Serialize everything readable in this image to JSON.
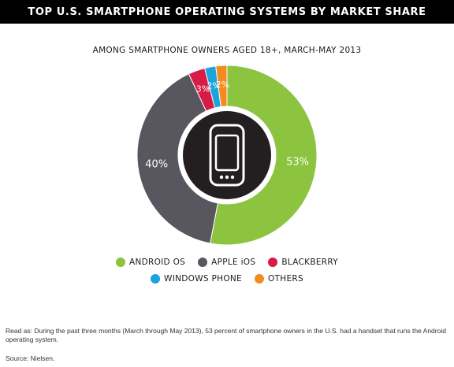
{
  "header": {
    "title": "TOP U.S. SMARTPHONE OPERATING SYSTEMS BY MARKET SHARE",
    "subtitle": "AMONG SMARTPHONE OWNERS AGED 18+, MARCH-MAY 2013"
  },
  "center_icon": "smartphone-icon",
  "chart_data": {
    "type": "pie",
    "title": "TOP U.S. SMARTPHONE OPERATING SYSTEMS BY MARKET SHARE",
    "subtitle": "AMONG SMARTPHONE OWNERS AGED 18+, MARCH-MAY 2013",
    "categories": [
      "ANDROID OS",
      "APPLE iOS",
      "BLACKBERRY",
      "WINDOWS PHONE",
      "OTHERS"
    ],
    "values": [
      53,
      40,
      3,
      2,
      2
    ],
    "labels": [
      "53%",
      "40%",
      "3%",
      "2%",
      "2%"
    ],
    "colors": [
      "#8cc43f",
      "#58575f",
      "#d81b45",
      "#1aa3dc",
      "#f58a1f"
    ],
    "legend_position": "bottom"
  },
  "legend": {
    "row1": [
      {
        "label": "ANDROID OS",
        "color": "#8cc43f"
      },
      {
        "label": "APPLE iOS",
        "color": "#58575f"
      },
      {
        "label": "BLACKBERRY",
        "color": "#d81b45"
      }
    ],
    "row2": [
      {
        "label": "WINDOWS PHONE",
        "color": "#1aa3dc"
      },
      {
        "label": "OTHERS",
        "color": "#f58a1f"
      }
    ]
  },
  "footnote": {
    "read_as": "Read as: During the past three months (March through May 2013), 53 percent of smartphone owners in the U.S. had a handset that runs the Android operating system.",
    "source": "Source: Nielsen."
  }
}
